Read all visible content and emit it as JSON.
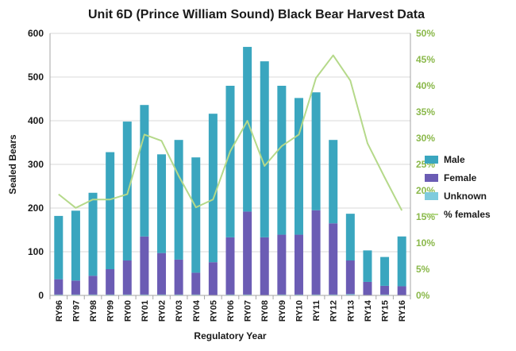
{
  "chart_data": {
    "type": "bar",
    "stacked": true,
    "title": "Unit 6D (Prince William Sound) Black Bear Harvest Data",
    "xlabel": "Regulatory Year",
    "ylabel": "Sealed Bears",
    "ylim": [
      0,
      600
    ],
    "y_ticks": [
      "0",
      "100",
      "200",
      "300",
      "400",
      "500",
      "600"
    ],
    "y2lim": [
      0,
      50
    ],
    "y2_ticks": [
      "0%",
      "5%",
      "10%",
      "15%",
      "20%",
      "25%",
      "30%",
      "35%",
      "40%",
      "45%",
      "50%"
    ],
    "grid": true,
    "legend_position": "right",
    "categories": [
      "RY96",
      "RY97",
      "RY98",
      "RY99",
      "RY00",
      "RY01",
      "RY02",
      "RY03",
      "RY04",
      "RY05",
      "RY06",
      "RY07",
      "RY08",
      "RY09",
      "RY10",
      "RY11",
      "RY12",
      "RY13",
      "RY14",
      "RY15",
      "RY16"
    ],
    "series": [
      {
        "name": "Male",
        "type": "bar",
        "color": "#3AA6BF",
        "values": [
          145,
          160,
          190,
          268,
          318,
          301,
          226,
          274,
          264,
          340,
          347,
          377,
          403,
          341,
          313,
          270,
          191,
          107,
          72,
          66,
          114
        ]
      },
      {
        "name": "Female",
        "type": "bar",
        "color": "#6B5CB4",
        "values": [
          35,
          32,
          43,
          58,
          78,
          133,
          95,
          80,
          50,
          75,
          131,
          190,
          132,
          137,
          137,
          193,
          163,
          77,
          30,
          20,
          20
        ]
      },
      {
        "name": "Unknown",
        "type": "bar",
        "color": "#7FCBDD",
        "values": [
          2,
          2,
          2,
          2,
          2,
          2,
          2,
          2,
          2,
          1,
          2,
          2,
          1,
          2,
          2,
          2,
          2,
          3,
          1,
          2,
          1
        ]
      },
      {
        "name": "% females",
        "type": "line",
        "axis": "right",
        "color": "#B5D98A",
        "values": [
          19.3,
          16.7,
          18.3,
          18.3,
          19.3,
          30.7,
          29.5,
          22.8,
          16.8,
          18.3,
          27.5,
          33.3,
          24.7,
          28.5,
          30.7,
          41.5,
          45.8,
          41.0,
          29.0,
          22.5,
          16.2
        ]
      }
    ]
  },
  "colors": {
    "right_axis_text": "#8AB84A",
    "grid": "#d9d9d9",
    "axis": "#a6a6a6"
  }
}
